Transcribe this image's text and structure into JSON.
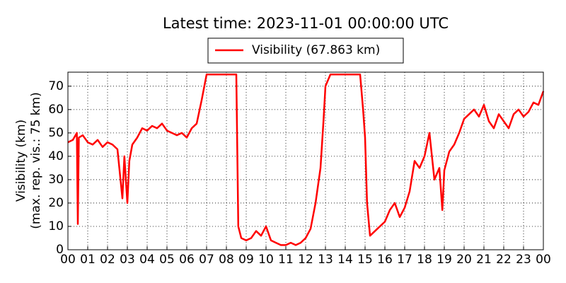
{
  "chart_data": {
    "type": "line",
    "title": "Latest time: 2023-11-01 00:00:00 UTC",
    "y_label": [
      "Visibility (km)",
      "(max. rep. vis.: 75 km)"
    ],
    "x": [
      0,
      0.25,
      0.45,
      0.5,
      0.55,
      0.75,
      1,
      1.25,
      1.5,
      1.75,
      2,
      2.25,
      2.5,
      2.75,
      2.85,
      3,
      3.1,
      3.25,
      3.5,
      3.75,
      4,
      4.25,
      4.5,
      4.75,
      5,
      5.25,
      5.5,
      5.75,
      6,
      6.25,
      6.5,
      6.75,
      7,
      7.25,
      7.5,
      7.75,
      8,
      8.25,
      8.5,
      8.6,
      8.75,
      9,
      9.25,
      9.5,
      9.75,
      10,
      10.25,
      10.5,
      10.75,
      11,
      11.25,
      11.5,
      11.75,
      12,
      12.25,
      12.5,
      12.75,
      12.9,
      13,
      13.25,
      13.5,
      13.75,
      14,
      14.25,
      14.5,
      14.75,
      14.9,
      15,
      15.1,
      15.25,
      15.5,
      15.75,
      16,
      16.25,
      16.5,
      16.75,
      17,
      17.25,
      17.5,
      17.75,
      18,
      18.25,
      18.5,
      18.75,
      18.9,
      19,
      19.25,
      19.5,
      19.75,
      20,
      20.25,
      20.5,
      20.75,
      21,
      21.25,
      21.5,
      21.75,
      22,
      22.25,
      22.5,
      22.75,
      23,
      23.25,
      23.5,
      23.75,
      24
    ],
    "series": [
      {
        "name": "Visibility (67.863 km)",
        "color": "#ff0000",
        "values": [
          46,
          47,
          50,
          11,
          48,
          49,
          46,
          45,
          47,
          44,
          46,
          45,
          43,
          22,
          40,
          20,
          38,
          45,
          48,
          52,
          51,
          53,
          52,
          54,
          51,
          50,
          49,
          50,
          48,
          52,
          54,
          64,
          75,
          75,
          75,
          75,
          75,
          75,
          75,
          10,
          5,
          4,
          5,
          8,
          6,
          10,
          4,
          3,
          2,
          2,
          3,
          2,
          3,
          5,
          9,
          20,
          35,
          55,
          70,
          75,
          75,
          75,
          75,
          75,
          75,
          75,
          60,
          48,
          20,
          6,
          8,
          10,
          12,
          17,
          20,
          14,
          18,
          25,
          38,
          35,
          40,
          50,
          30,
          35,
          17,
          34,
          42,
          45,
          50,
          56,
          58,
          60,
          57,
          62,
          55,
          52,
          58,
          55,
          52,
          58,
          60,
          57,
          59,
          63,
          62,
          67.863
        ]
      }
    ],
    "xlim": [
      0,
      24
    ],
    "xticks": [
      {
        "value": 0,
        "label": "00"
      },
      {
        "value": 1,
        "label": "01"
      },
      {
        "value": 2,
        "label": "02"
      },
      {
        "value": 3,
        "label": "03"
      },
      {
        "value": 4,
        "label": "04"
      },
      {
        "value": 5,
        "label": "05"
      },
      {
        "value": 6,
        "label": "06"
      },
      {
        "value": 7,
        "label": "07"
      },
      {
        "value": 8,
        "label": "08"
      },
      {
        "value": 9,
        "label": "09"
      },
      {
        "value": 10,
        "label": "10"
      },
      {
        "value": 11,
        "label": "11"
      },
      {
        "value": 12,
        "label": "12"
      },
      {
        "value": 13,
        "label": "13"
      },
      {
        "value": 14,
        "label": "14"
      },
      {
        "value": 15,
        "label": "15"
      },
      {
        "value": 16,
        "label": "16"
      },
      {
        "value": 17,
        "label": "17"
      },
      {
        "value": 18,
        "label": "18"
      },
      {
        "value": 19,
        "label": "19"
      },
      {
        "value": 20,
        "label": "20"
      },
      {
        "value": 21,
        "label": "21"
      },
      {
        "value": 22,
        "label": "22"
      },
      {
        "value": 23,
        "label": "23"
      },
      {
        "value": 24,
        "label": "00"
      }
    ],
    "ylim": [
      0,
      76
    ],
    "yticks": [
      0,
      10,
      20,
      30,
      40,
      50,
      60,
      70
    ],
    "grid": true,
    "legend": "top"
  }
}
